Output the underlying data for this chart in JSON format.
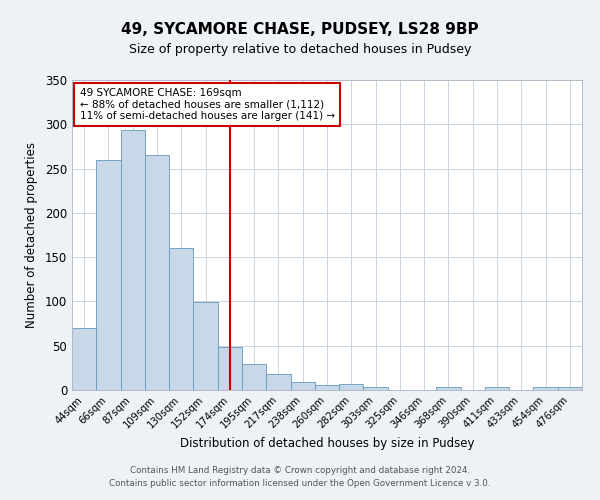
{
  "title": "49, SYCAMORE CHASE, PUDSEY, LS28 9BP",
  "subtitle": "Size of property relative to detached houses in Pudsey",
  "xlabel": "Distribution of detached houses by size in Pudsey",
  "ylabel": "Number of detached properties",
  "bar_labels": [
    "44sqm",
    "66sqm",
    "87sqm",
    "109sqm",
    "130sqm",
    "152sqm",
    "174sqm",
    "195sqm",
    "217sqm",
    "238sqm",
    "260sqm",
    "282sqm",
    "303sqm",
    "325sqm",
    "346sqm",
    "368sqm",
    "390sqm",
    "411sqm",
    "433sqm",
    "454sqm",
    "476sqm"
  ],
  "bar_heights": [
    70,
    260,
    293,
    265,
    160,
    99,
    49,
    29,
    18,
    9,
    6,
    7,
    3,
    0,
    0,
    3,
    0,
    3,
    0,
    3,
    3
  ],
  "bar_color": "#c8d8e8",
  "bar_edge_color": "#6699bb",
  "vline_x": 6,
  "vline_color": "#cc0000",
  "ylim": [
    0,
    350
  ],
  "yticks": [
    0,
    50,
    100,
    150,
    200,
    250,
    300,
    350
  ],
  "annotation_title": "49 SYCAMORE CHASE: 169sqm",
  "annotation_line1": "← 88% of detached houses are smaller (1,112)",
  "annotation_line2": "11% of semi-detached houses are larger (141) →",
  "annotation_box_color": "#ffffff",
  "annotation_box_edge": "#cc0000",
  "footer_line1": "Contains HM Land Registry data © Crown copyright and database right 2024.",
  "footer_line2": "Contains public sector information licensed under the Open Government Licence v 3.0.",
  "bg_color": "#eef2f7",
  "plot_bg_color": "#ffffff",
  "grid_color": "#c8d4e0"
}
